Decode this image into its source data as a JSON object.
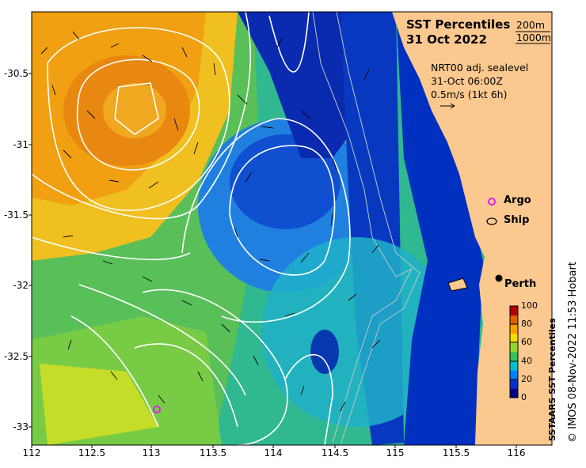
{
  "title": "SST Percentiles",
  "date": "31 Oct 2022",
  "isobaths": [
    "200m",
    "1000m"
  ],
  "info": {
    "line1": "NRT00 adj. sealevel",
    "line2": "31-Oct 06:00Z",
    "line3": "0.5m/s (1kt 6h)"
  },
  "legend": {
    "argo": "Argo",
    "ship": "Ship"
  },
  "city": "Perth",
  "colorbar": {
    "label": "SSTAARS SST Percentiles",
    "ticks": [
      "100",
      "80",
      "60",
      "40",
      "20",
      "0"
    ],
    "colors": [
      "#000080",
      "#0030d0",
      "#0080ff",
      "#00c0d0",
      "#30c060",
      "#90d830",
      "#f0e000",
      "#f8a000",
      "#e06000",
      "#b00000"
    ]
  },
  "credit": "© IMOS 08-Nov-2022 11:53 Hobart",
  "axes": {
    "lat_ticks": [
      "-30.5",
      "-31",
      "-31.5",
      "-32",
      "-32.5",
      "-33"
    ],
    "lon_ticks": [
      "112",
      "112.5",
      "113",
      "113.5",
      "114",
      "114.5",
      "115",
      "115.5",
      "116"
    ]
  },
  "colors": {
    "land": "#fbc98f",
    "argo": "#e020e0"
  }
}
